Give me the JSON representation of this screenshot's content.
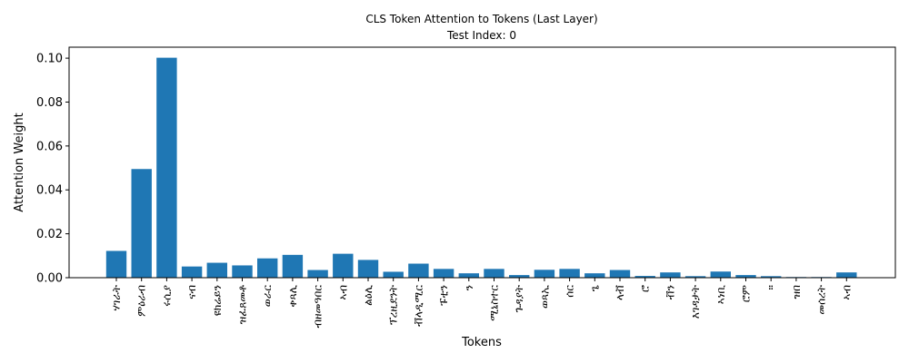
{
  "chart_data": {
    "type": "bar",
    "title": "CLS Token Attention to Tokens (Last Layer)",
    "subtitle": "Test Index: 0",
    "xlabel": "Tokens",
    "ylabel": "Attention Weight",
    "ylim": [
      0,
      0.105
    ],
    "yticks": [
      "0.00",
      "0.02",
      "0.04",
      "0.06",
      "0.08",
      "0.10"
    ],
    "ytick_values": [
      0,
      0.02,
      0.04,
      0.06,
      0.08,
      0.1
    ],
    "color": "#1f77b4",
    "categories": [
      "ሃገራት",
      "ምዕራብ",
      "ሩሲያ",
      "ናብ",
      "ዩክሬይን",
      "ዝፈጸመቶ",
      "ወራር",
      "ቀጻሊ",
      "ብዘመዓበር",
      "ኣብ",
      "ልዕሊ",
      "ፕረዚደንት",
      "ቭላዲሚር",
      "ፑቲን",
      "ን",
      "ሚኒስተር",
      "ጉዳያት",
      "ወጻኢ",
      "ሰር",
      "ጌ",
      "ላቭ",
      "ሮ",
      "ቭን",
      "እገዳታት",
      "ኣነቢ",
      "ሮም",
      "።",
      "ዝበ",
      "መሰረት",
      "ኣብ"
    ],
    "values": [
      0.0122,
      0.0495,
      0.1002,
      0.0051,
      0.0068,
      0.0056,
      0.0088,
      0.0104,
      0.0035,
      0.0109,
      0.0081,
      0.0027,
      0.0064,
      0.004,
      0.002,
      0.004,
      0.0012,
      0.0036,
      0.004,
      0.002,
      0.0035,
      0.0008,
      0.0024,
      0.0007,
      0.0028,
      0.0012,
      0.0007,
      0.0003,
      0.0003,
      0.0024
    ]
  }
}
